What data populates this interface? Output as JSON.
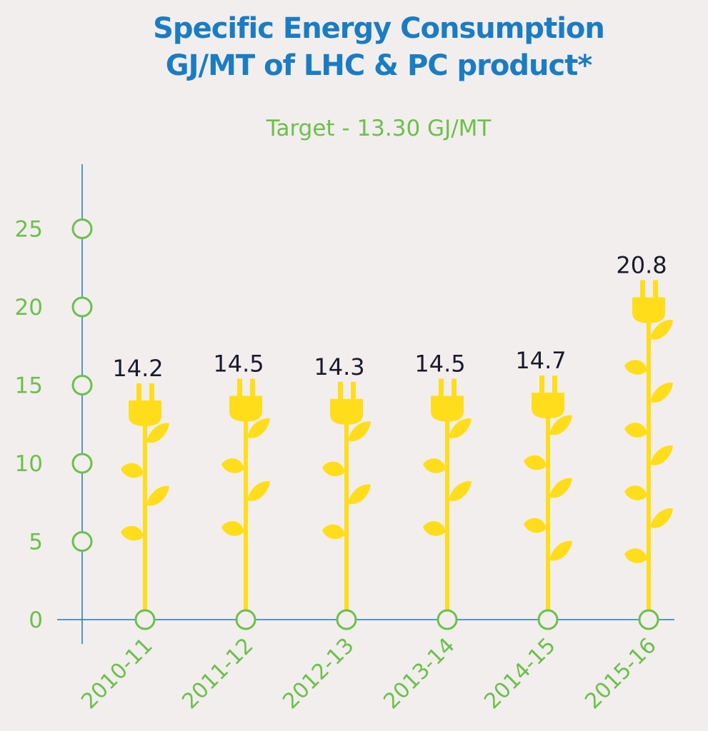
{
  "chart_data": {
    "type": "bar",
    "title_lines": [
      "Specific Energy Consumption",
      "GJ/MT of LHC & PC product*"
    ],
    "subtitle": "Target - 13.30 GJ/MT",
    "categories": [
      "2010-11",
      "2011-12",
      "2012-13",
      "2013-14",
      "2014-15",
      "2015-16"
    ],
    "values": [
      14.2,
      14.5,
      14.3,
      14.5,
      14.7,
      20.8
    ],
    "data_labels": [
      "14.2",
      "14.5",
      "14.3",
      "14.5",
      "14.7",
      "20.8"
    ],
    "yticks": [
      0,
      5,
      10,
      15,
      20,
      25
    ],
    "ylim": [
      0,
      25
    ],
    "grid": false,
    "colors": {
      "axis": "#1a7cc4",
      "tick": "#6cc04a",
      "bar": "#ffdd1a",
      "title": "#1a7cc4",
      "value_label": "#1a1a2e"
    }
  }
}
